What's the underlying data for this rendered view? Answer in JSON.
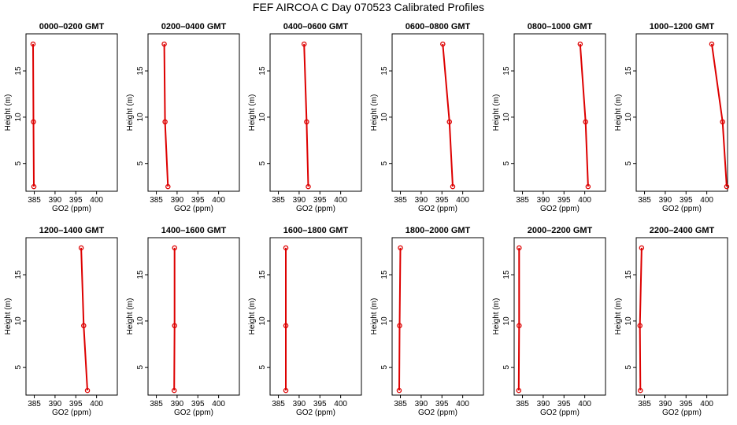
{
  "title": "FEF AIRCOA C  Day 070523  Calibrated Profiles",
  "colors": {
    "series": "#dd0000",
    "axis": "#000000"
  },
  "chart_data": [
    {
      "type": "line",
      "title": "0000–0200 GMT",
      "xlabel": "GO2 (ppm)",
      "ylabel": "Height (m)",
      "xlim": [
        383,
        405
      ],
      "ylim": [
        2,
        19
      ],
      "xticks": [
        "385",
        "390",
        "395",
        "400"
      ],
      "yticks": [
        "5",
        "10",
        "15"
      ],
      "points": [
        {
          "x": 384.7,
          "y": 17.9
        },
        {
          "x": 384.8,
          "y": 9.5
        },
        {
          "x": 384.9,
          "y": 2.5
        }
      ]
    },
    {
      "type": "line",
      "title": "0200–0400 GMT",
      "xlabel": "GO2 (ppm)",
      "ylabel": "Height (m)",
      "xlim": [
        383,
        405
      ],
      "ylim": [
        2,
        19
      ],
      "xticks": [
        "385",
        "390",
        "395",
        "400"
      ],
      "yticks": [
        "5",
        "10",
        "15"
      ],
      "points": [
        {
          "x": 386.9,
          "y": 17.9
        },
        {
          "x": 387.1,
          "y": 9.5
        },
        {
          "x": 387.8,
          "y": 2.5
        }
      ]
    },
    {
      "type": "line",
      "title": "0400–0600 GMT",
      "xlabel": "GO2 (ppm)",
      "ylabel": "Height (m)",
      "xlim": [
        383,
        405
      ],
      "ylim": [
        2,
        19
      ],
      "xticks": [
        "385",
        "390",
        "395",
        "400"
      ],
      "yticks": [
        "5",
        "10",
        "15"
      ],
      "points": [
        {
          "x": 391.2,
          "y": 17.9
        },
        {
          "x": 391.8,
          "y": 9.5
        },
        {
          "x": 392.2,
          "y": 2.5
        }
      ]
    },
    {
      "type": "line",
      "title": "0600–0800 GMT",
      "xlabel": "GO2 (ppm)",
      "ylabel": "Height (m)",
      "xlim": [
        383,
        405
      ],
      "ylim": [
        2,
        19
      ],
      "xticks": [
        "385",
        "390",
        "395",
        "400"
      ],
      "yticks": [
        "5",
        "10",
        "15"
      ],
      "points": [
        {
          "x": 395.2,
          "y": 17.9
        },
        {
          "x": 396.8,
          "y": 9.5
        },
        {
          "x": 397.6,
          "y": 2.5
        }
      ]
    },
    {
      "type": "line",
      "title": "0800–1000 GMT",
      "xlabel": "GO2 (ppm)",
      "ylabel": "Height (m)",
      "xlim": [
        383,
        405
      ],
      "ylim": [
        2,
        19
      ],
      "xticks": [
        "385",
        "390",
        "395",
        "400"
      ],
      "yticks": [
        "5",
        "10",
        "15"
      ],
      "points": [
        {
          "x": 398.9,
          "y": 17.9
        },
        {
          "x": 400.2,
          "y": 9.5
        },
        {
          "x": 400.8,
          "y": 2.5
        }
      ]
    },
    {
      "type": "line",
      "title": "1000–1200 GMT",
      "xlabel": "GO2 (ppm)",
      "ylabel": "Height (m)",
      "xlim": [
        383,
        405
      ],
      "ylim": [
        2,
        19
      ],
      "xticks": [
        "385",
        "390",
        "395",
        "400"
      ],
      "yticks": [
        "5",
        "10",
        "15"
      ],
      "points": [
        {
          "x": 401.2,
          "y": 17.9
        },
        {
          "x": 403.8,
          "y": 9.5
        },
        {
          "x": 404.8,
          "y": 2.5
        }
      ]
    },
    {
      "type": "line",
      "title": "1200–1400 GMT",
      "xlabel": "GO2 (ppm)",
      "ylabel": "Height (m)",
      "xlim": [
        383,
        405
      ],
      "ylim": [
        2,
        19
      ],
      "xticks": [
        "385",
        "390",
        "395",
        "400"
      ],
      "yticks": [
        "5",
        "10",
        "15"
      ],
      "points": [
        {
          "x": 396.3,
          "y": 17.9
        },
        {
          "x": 396.9,
          "y": 9.5
        },
        {
          "x": 397.8,
          "y": 2.5
        }
      ]
    },
    {
      "type": "line",
      "title": "1400–1600 GMT",
      "xlabel": "GO2 (ppm)",
      "ylabel": "Height (m)",
      "xlim": [
        383,
        405
      ],
      "ylim": [
        2,
        19
      ],
      "xticks": [
        "385",
        "390",
        "395",
        "400"
      ],
      "yticks": [
        "5",
        "10",
        "15"
      ],
      "points": [
        {
          "x": 389.4,
          "y": 17.9
        },
        {
          "x": 389.4,
          "y": 9.5
        },
        {
          "x": 389.3,
          "y": 2.5
        }
      ]
    },
    {
      "type": "line",
      "title": "1600–1800 GMT",
      "xlabel": "GO2 (ppm)",
      "ylabel": "Height (m)",
      "xlim": [
        383,
        405
      ],
      "ylim": [
        2,
        19
      ],
      "xticks": [
        "385",
        "390",
        "395",
        "400"
      ],
      "yticks": [
        "5",
        "10",
        "15"
      ],
      "points": [
        {
          "x": 386.8,
          "y": 17.9
        },
        {
          "x": 386.8,
          "y": 9.5
        },
        {
          "x": 386.8,
          "y": 2.5
        }
      ]
    },
    {
      "type": "line",
      "title": "1800–2000 GMT",
      "xlabel": "GO2 (ppm)",
      "ylabel": "Height (m)",
      "xlim": [
        383,
        405
      ],
      "ylim": [
        2,
        19
      ],
      "xticks": [
        "385",
        "390",
        "395",
        "400"
      ],
      "yticks": [
        "5",
        "10",
        "15"
      ],
      "points": [
        {
          "x": 385.0,
          "y": 17.9
        },
        {
          "x": 384.8,
          "y": 9.5
        },
        {
          "x": 384.7,
          "y": 2.5
        }
      ]
    },
    {
      "type": "line",
      "title": "2000–2200 GMT",
      "xlabel": "GO2 (ppm)",
      "ylabel": "Height (m)",
      "xlim": [
        383,
        405
      ],
      "ylim": [
        2,
        19
      ],
      "xticks": [
        "385",
        "390",
        "395",
        "400"
      ],
      "yticks": [
        "5",
        "10",
        "15"
      ],
      "points": [
        {
          "x": 384.2,
          "y": 17.9
        },
        {
          "x": 384.2,
          "y": 9.5
        },
        {
          "x": 384.1,
          "y": 2.5
        }
      ]
    },
    {
      "type": "line",
      "title": "2200–2400 GMT",
      "xlabel": "GO2 (ppm)",
      "ylabel": "Height (m)",
      "xlim": [
        383,
        405
      ],
      "ylim": [
        2,
        19
      ],
      "xticks": [
        "385",
        "390",
        "395",
        "400"
      ],
      "yticks": [
        "5",
        "10",
        "15"
      ],
      "points": [
        {
          "x": 384.3,
          "y": 17.9
        },
        {
          "x": 383.9,
          "y": 9.5
        },
        {
          "x": 384.0,
          "y": 2.5
        }
      ]
    }
  ]
}
